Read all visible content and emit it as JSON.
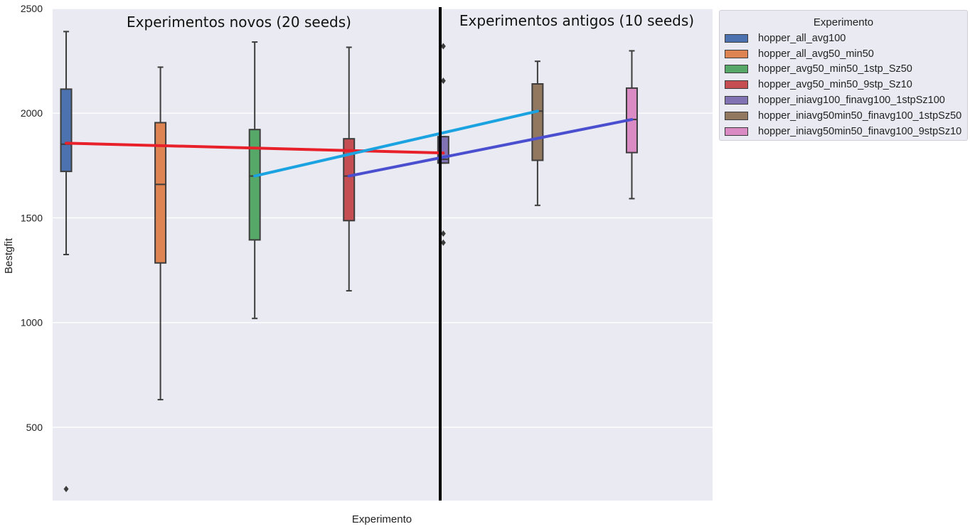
{
  "chart_data": {
    "type": "box",
    "xlabel": "Experimento",
    "ylabel": "Bestgfit",
    "ylim": [
      150,
      2500
    ],
    "yticks": [
      500,
      1000,
      1500,
      2000,
      2500
    ],
    "grid": true,
    "legend": {
      "title": "Experimento",
      "placement": "outside-right"
    },
    "series": [
      {
        "name": "hopper_all_avg100",
        "color": "#4c72b0",
        "min": 1325,
        "q1": 1722,
        "median": 1852,
        "q3": 2115,
        "max": 2390,
        "outliers": [
          205
        ]
      },
      {
        "name": "hopper_all_avg50_min50",
        "color": "#dd8452",
        "min": 632,
        "q1": 1285,
        "median": 1660,
        "q3": 1955,
        "max": 2220,
        "outliers": []
      },
      {
        "name": "hopper_avg50_min50_1stp_Sz50",
        "color": "#55a868",
        "min": 1020,
        "q1": 1395,
        "median": 1700,
        "q3": 1922,
        "max": 2340,
        "outliers": []
      },
      {
        "name": "hopper_avg50_min50_9stp_Sz10",
        "color": "#c44e52",
        "min": 1152,
        "q1": 1487,
        "median": 1700,
        "q3": 1878,
        "max": 2315,
        "outliers": []
      },
      {
        "name": "hopper_iniavg100_finavg100_1stpSz100",
        "color": "#8172b3",
        "min": 1762,
        "q1": 1762,
        "median": 1780,
        "q3": 1888,
        "max": 1888,
        "outliers": [
          2320,
          2155,
          1425,
          1382
        ]
      },
      {
        "name": "hopper_iniavg50min50_finavg100_1stpSz50",
        "color": "#937860",
        "min": 1560,
        "q1": 1775,
        "median": 2010,
        "q3": 2140,
        "max": 2248,
        "outliers": []
      },
      {
        "name": "hopper_iniavg50min50_finavg100_9stpSz10",
        "color": "#da8bc3",
        "min": 1592,
        "q1": 1812,
        "median": 1970,
        "q3": 2120,
        "max": 2298,
        "outliers": []
      }
    ],
    "trend_lines": [
      {
        "color": "#e8202a",
        "from_box": 0,
        "from_y": 1857,
        "to_box": 4,
        "to_y": 1810
      },
      {
        "color": "#1aa3e0",
        "from_box": 2,
        "from_y": 1700,
        "to_box": 5,
        "to_y": 2010
      },
      {
        "color": "#4a4fd0",
        "from_box": 3,
        "from_y": 1700,
        "to_box": 6,
        "to_y": 1970
      }
    ],
    "annotations": [
      {
        "text": "Experimentos novos (20 seeds)"
      },
      {
        "text": "Experimentos antigos (10 seeds)"
      }
    ]
  }
}
